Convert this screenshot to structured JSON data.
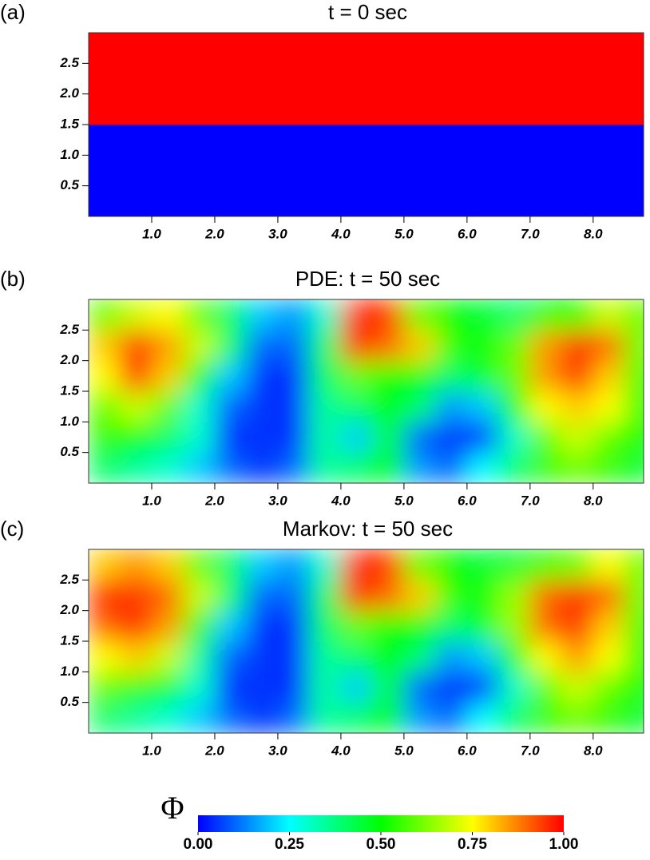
{
  "chart_data": [
    {
      "type": "heatmap",
      "panel": "(a)",
      "title": "t = 0 sec",
      "x": [
        0.25,
        0.75,
        1.25,
        1.75,
        2.25,
        2.75,
        3.25,
        3.75,
        4.25,
        4.75,
        5.25,
        5.75,
        6.25,
        6.75,
        7.25,
        7.75,
        8.25,
        8.75
      ],
      "y": [
        0.25,
        0.75,
        1.25,
        1.75,
        2.25,
        2.75
      ],
      "z": [
        [
          0,
          0,
          0,
          0,
          0,
          0,
          0,
          0,
          0,
          0,
          0,
          0,
          0,
          0,
          0,
          0,
          0,
          0
        ],
        [
          0,
          0,
          0,
          0,
          0,
          0,
          0,
          0,
          0,
          0,
          0,
          0,
          0,
          0,
          0,
          0,
          0,
          0
        ],
        [
          0,
          0,
          0,
          0,
          0,
          0,
          0,
          0,
          0,
          0,
          0,
          0,
          0,
          0,
          0,
          0,
          0,
          0
        ],
        [
          1,
          1,
          1,
          1,
          1,
          1,
          1,
          1,
          1,
          1,
          1,
          1,
          1,
          1,
          1,
          1,
          1,
          1
        ],
        [
          1,
          1,
          1,
          1,
          1,
          1,
          1,
          1,
          1,
          1,
          1,
          1,
          1,
          1,
          1,
          1,
          1,
          1
        ],
        [
          1,
          1,
          1,
          1,
          1,
          1,
          1,
          1,
          1,
          1,
          1,
          1,
          1,
          1,
          1,
          1,
          1,
          1
        ]
      ],
      "smooth": false,
      "xlim": [
        0,
        8.8
      ],
      "ylim": [
        0,
        3
      ],
      "xticks": [
        {
          "value": 1,
          "label": "1.0"
        },
        {
          "value": 2,
          "label": "2.0"
        },
        {
          "value": 3,
          "label": "3.0"
        },
        {
          "value": 4,
          "label": "4.0"
        },
        {
          "value": 5,
          "label": "5.0"
        },
        {
          "value": 6,
          "label": "6.0"
        },
        {
          "value": 7,
          "label": "7.0"
        },
        {
          "value": 8,
          "label": "8.0"
        }
      ],
      "yticks": [
        0.5,
        {
          "value": 1,
          "label": "1.0"
        },
        1.5,
        {
          "value": 2,
          "label": "2.0"
        },
        2.5
      ]
    },
    {
      "type": "heatmap",
      "panel": "(b)",
      "title": "PDE: t = 50 sec",
      "x": [
        0.25,
        0.75,
        1.25,
        1.75,
        2.25,
        2.75,
        3.25,
        3.75,
        4.25,
        4.75,
        5.25,
        5.75,
        6.25,
        6.75,
        7.25,
        7.75,
        8.25,
        8.75
      ],
      "y": [
        0.25,
        0.75,
        1.25,
        1.75,
        2.25,
        2.75
      ],
      "z": [
        [
          0.4,
          0.35,
          0.3,
          0.2,
          0.1,
          0.05,
          0.1,
          0.35,
          0.4,
          0.5,
          0.15,
          0.1,
          0.25,
          0.4,
          0.55,
          0.6,
          0.55,
          0.45
        ],
        [
          0.55,
          0.5,
          0.4,
          0.3,
          0.05,
          0.05,
          0.05,
          0.35,
          0.2,
          0.45,
          0.1,
          0.05,
          0.05,
          0.3,
          0.6,
          0.7,
          0.6,
          0.5
        ],
        [
          0.6,
          0.7,
          0.6,
          0.3,
          0.1,
          0.05,
          0.05,
          0.35,
          0.4,
          0.5,
          0.4,
          0.15,
          0.2,
          0.5,
          0.75,
          0.8,
          0.75,
          0.5
        ],
        [
          0.75,
          0.95,
          0.8,
          0.5,
          0.2,
          0.05,
          0.05,
          0.4,
          0.6,
          0.5,
          0.5,
          0.4,
          0.45,
          0.6,
          0.85,
          0.95,
          0.8,
          0.55
        ],
        [
          0.8,
          0.95,
          0.85,
          0.7,
          0.4,
          0.1,
          0.1,
          0.4,
          0.95,
          0.9,
          0.8,
          0.55,
          0.5,
          0.6,
          0.85,
          0.95,
          0.9,
          0.6
        ],
        [
          0.6,
          0.7,
          0.75,
          0.6,
          0.4,
          0.2,
          0.15,
          0.3,
          0.95,
          0.95,
          0.6,
          0.5,
          0.45,
          0.4,
          0.5,
          0.5,
          0.7,
          0.6
        ]
      ],
      "smooth": true,
      "xlim": [
        0,
        8.8
      ],
      "ylim": [
        0,
        3
      ],
      "xticks": [
        {
          "value": 1,
          "label": "1.0"
        },
        {
          "value": 2,
          "label": "2.0"
        },
        {
          "value": 3,
          "label": "3.0"
        },
        {
          "value": 4,
          "label": "4.0"
        },
        {
          "value": 5,
          "label": "5.0"
        },
        {
          "value": 6,
          "label": "6.0"
        },
        {
          "value": 7,
          "label": "7.0"
        },
        {
          "value": 8,
          "label": "8.0"
        }
      ],
      "yticks": [
        0.5,
        {
          "value": 1,
          "label": "1.0"
        },
        1.5,
        {
          "value": 2,
          "label": "2.0"
        },
        2.5
      ]
    },
    {
      "type": "heatmap",
      "panel": "(c)",
      "title": "Markov: t = 50 sec",
      "x": [
        0.25,
        0.75,
        1.25,
        1.75,
        2.25,
        2.75,
        3.25,
        3.75,
        4.25,
        4.75,
        5.25,
        5.75,
        6.25,
        6.75,
        7.25,
        7.75,
        8.25,
        8.75
      ],
      "y": [
        0.25,
        0.75,
        1.25,
        1.75,
        2.25,
        2.75
      ],
      "z": [
        [
          0.4,
          0.35,
          0.3,
          0.2,
          0.1,
          0.05,
          0.1,
          0.35,
          0.4,
          0.5,
          0.15,
          0.1,
          0.25,
          0.4,
          0.55,
          0.6,
          0.55,
          0.45
        ],
        [
          0.6,
          0.55,
          0.45,
          0.3,
          0.05,
          0.05,
          0.05,
          0.35,
          0.2,
          0.45,
          0.1,
          0.05,
          0.05,
          0.3,
          0.6,
          0.7,
          0.6,
          0.5
        ],
        [
          0.75,
          0.8,
          0.7,
          0.35,
          0.1,
          0.05,
          0.05,
          0.35,
          0.4,
          0.5,
          0.4,
          0.15,
          0.2,
          0.5,
          0.75,
          0.85,
          0.75,
          0.5
        ],
        [
          0.9,
          0.95,
          0.85,
          0.55,
          0.2,
          0.05,
          0.05,
          0.4,
          0.6,
          0.5,
          0.5,
          0.4,
          0.45,
          0.65,
          0.9,
          0.95,
          0.8,
          0.55
        ],
        [
          0.95,
          0.95,
          0.9,
          0.7,
          0.4,
          0.1,
          0.1,
          0.4,
          0.95,
          0.9,
          0.8,
          0.55,
          0.5,
          0.65,
          0.9,
          0.95,
          0.9,
          0.6
        ],
        [
          0.8,
          0.85,
          0.8,
          0.6,
          0.4,
          0.2,
          0.15,
          0.3,
          0.95,
          0.95,
          0.6,
          0.5,
          0.45,
          0.45,
          0.55,
          0.6,
          0.75,
          0.6
        ]
      ],
      "smooth": true,
      "xlim": [
        0,
        8.8
      ],
      "ylim": [
        0,
        3
      ],
      "xticks": [
        {
          "value": 1,
          "label": "1.0"
        },
        {
          "value": 2,
          "label": "2.0"
        },
        {
          "value": 3,
          "label": "3.0"
        },
        {
          "value": 4,
          "label": "4.0"
        },
        {
          "value": 5,
          "label": "5.0"
        },
        {
          "value": 6,
          "label": "6.0"
        },
        {
          "value": 7,
          "label": "7.0"
        },
        {
          "value": 8,
          "label": "8.0"
        }
      ],
      "yticks": [
        0.5,
        {
          "value": 1,
          "label": "1.0"
        },
        1.5,
        {
          "value": 2,
          "label": "2.0"
        },
        2.5
      ]
    }
  ],
  "colormap": [
    "#0000ff",
    "#00ffff",
    "#00ff00",
    "#ffff00",
    "#ff0000"
  ],
  "colorbar": {
    "label": "Φ",
    "lim": [
      0,
      1
    ],
    "ticks": [
      {
        "value": 0,
        "label": "0.00"
      },
      {
        "value": 0.25,
        "label": "0.25"
      },
      {
        "value": 0.5,
        "label": "0.50"
      },
      {
        "value": 0.75,
        "label": "0.75"
      },
      {
        "value": 1,
        "label": "1.00"
      }
    ]
  }
}
